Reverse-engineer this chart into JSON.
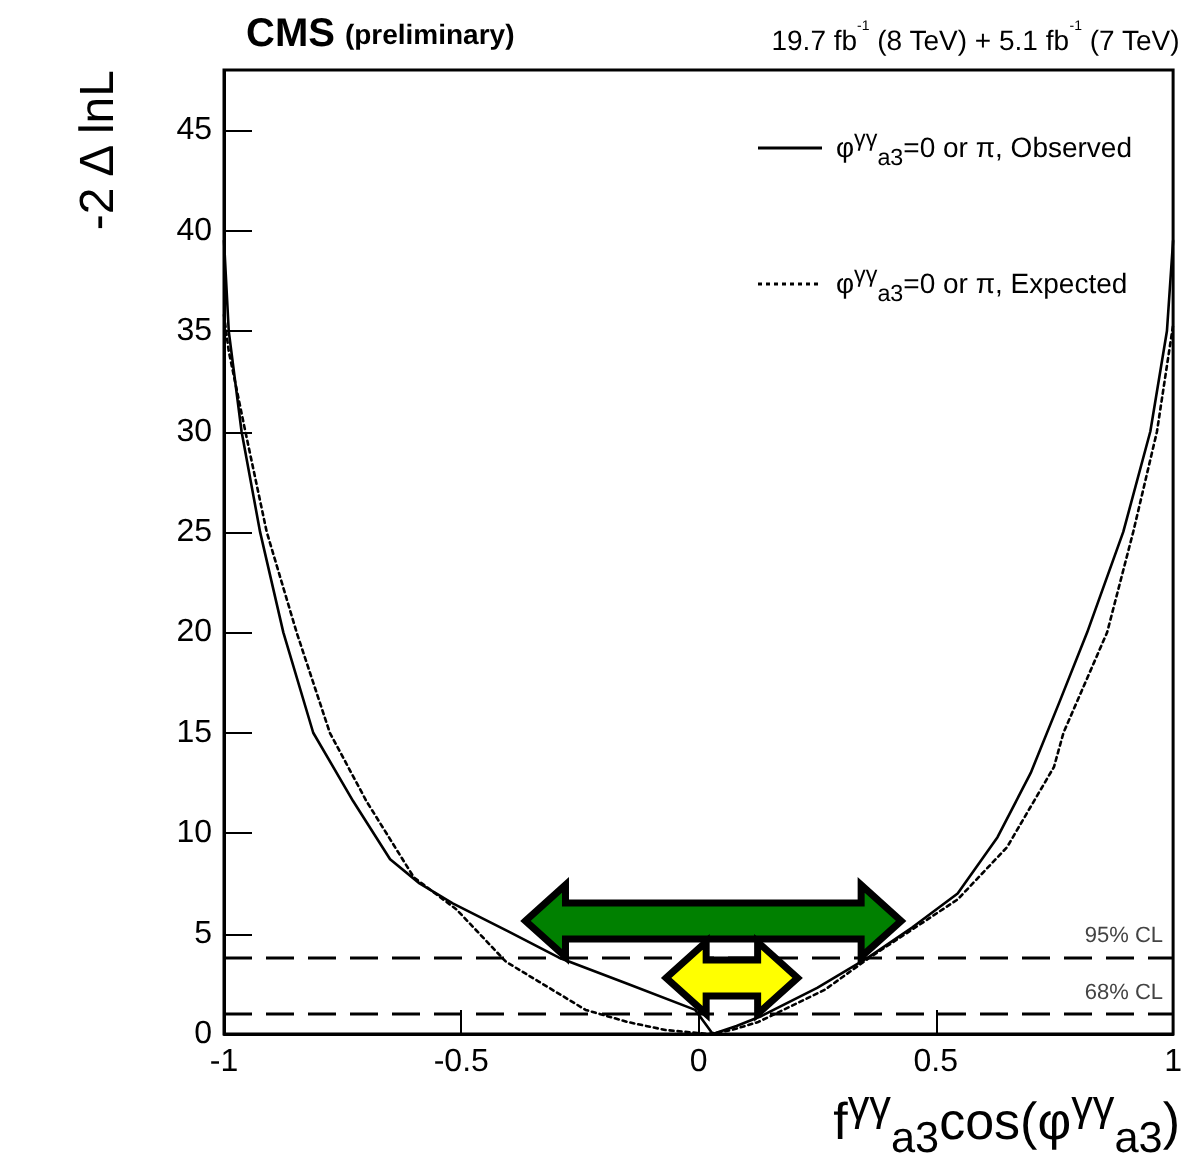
{
  "chart_data": {
    "type": "line",
    "title": "CMS",
    "subtitle": "(preliminary)",
    "annotations": [
      "19.7 fb$^{-1}$ (8 TeV) + 5.1 fb$^{-1}$ (7 TeV)"
    ],
    "xlabel": "f$^{γγ}$$_{a3}$cos(φ$^{γγ}$$_{a3}$)",
    "ylabel": "-2 Δ lnL",
    "series": [
      {
        "name": "φ$^{γγ}$$_{a3}$=0 or π, Observed",
        "color": "#000000",
        "line_style": "solid",
        "x": [
          -1,
          -0.99,
          -0.963,
          -0.924,
          -0.875,
          -0.812,
          -0.728,
          -0.65,
          -0.588,
          -0.518,
          -0.4,
          -0.294,
          -0.15,
          -0.007,
          0.03,
          0.08,
          0.133,
          0.25,
          0.357,
          0.45,
          0.546,
          0.63,
          0.7,
          0.76,
          0.819,
          0.895,
          0.952,
          0.987,
          1
        ],
        "values": [
          39.5,
          35,
          30,
          25,
          20,
          15,
          11.6,
          8.7,
          7.5,
          6.5,
          5.1,
          3.8,
          2.5,
          1.2,
          0,
          0.4,
          0.9,
          2.3,
          3.8,
          5.3,
          7,
          9.8,
          13,
          16.5,
          20,
          25,
          30,
          35,
          39.5
        ]
      },
      {
        "name": "φ$^{γγ}$$_{a3}$=0 or π, Expected",
        "color": "#000000",
        "line_style": "dotted",
        "x": [
          -1,
          -0.99,
          -0.955,
          -0.91,
          -0.847,
          -0.777,
          -0.7,
          -0.6,
          -0.51,
          -0.406,
          -0.336,
          -0.238,
          -0.15,
          -0.07,
          0.02,
          0.07,
          0.126,
          0.266,
          0.36,
          0.45,
          0.546,
          0.65,
          0.749,
          0.769,
          0.861,
          0.916,
          0.966,
          1
        ],
        "values": [
          35.8,
          34,
          30,
          25,
          20,
          15,
          11.6,
          7.8,
          6.2,
          3.6,
          2.6,
          1.2,
          0.6,
          0.2,
          0,
          0.2,
          0.6,
          2.2,
          3.8,
          5.2,
          6.7,
          9.3,
          13.3,
          15,
          20,
          25,
          30,
          35.3
        ]
      }
    ],
    "ref_lines": [
      {
        "axis": "y",
        "value": 3.84,
        "label": "95% CL",
        "color": "#000000",
        "line_style": "dashed"
      },
      {
        "axis": "y",
        "value": 1,
        "label": "68% CL",
        "color": "#000000",
        "line_style": "dashed"
      }
    ],
    "xlim": [
      -1,
      1
    ],
    "xticks": [
      -1,
      -0.5,
      0,
      0.5,
      1
    ],
    "ylim": [
      0,
      48
    ],
    "yticks": [
      0,
      5,
      10,
      15,
      20,
      25,
      30,
      35,
      40,
      45
    ],
    "grid": false,
    "legend": "top right",
    "marker": "none"
  }
}
